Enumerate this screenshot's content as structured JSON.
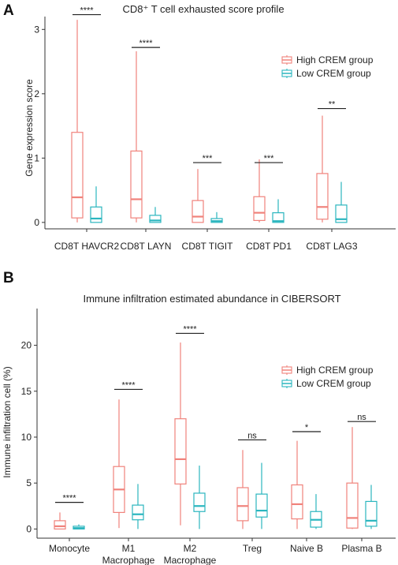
{
  "colors": {
    "high": "#F0827B",
    "low": "#2BB6BF",
    "axis": "#333333",
    "sig": "#222222"
  },
  "chart_data": [
    {
      "panel": "A",
      "type": "boxplot",
      "title": "CD8⁺ T cell exhausted score profile",
      "xlabel": "",
      "ylabel": "Gene expression score",
      "ylim": [
        -0.1,
        3.2
      ],
      "yticks": [
        0,
        1,
        2,
        3
      ],
      "legend": {
        "position": "top-right",
        "entries": [
          "High CREM group",
          "Low  CREM group"
        ]
      },
      "grid": false,
      "categories": [
        "CD8T HAVCR2",
        "CD8T LAYN",
        "CD8T TIGIT",
        "CD8T PD1",
        "CD8T LAG3"
      ],
      "series": [
        {
          "name": "High CREM group",
          "boxes": [
            {
              "min": 0.0,
              "q1": 0.07,
              "median": 0.39,
              "q3": 1.4,
              "max": 3.15
            },
            {
              "min": 0.0,
              "q1": 0.07,
              "median": 0.36,
              "q3": 1.11,
              "max": 2.66
            },
            {
              "min": 0.0,
              "q1": 0.0,
              "median": 0.09,
              "q3": 0.34,
              "max": 0.83
            },
            {
              "min": 0.0,
              "q1": 0.03,
              "median": 0.15,
              "q3": 0.4,
              "max": 0.98
            },
            {
              "min": 0.0,
              "q1": 0.05,
              "median": 0.24,
              "q3": 0.76,
              "max": 1.66
            }
          ]
        },
        {
          "name": "Low  CREM group",
          "boxes": [
            {
              "min": 0.0,
              "q1": 0.0,
              "median": 0.06,
              "q3": 0.24,
              "max": 0.56
            },
            {
              "min": 0.0,
              "q1": 0.0,
              "median": 0.03,
              "q3": 0.11,
              "max": 0.24
            },
            {
              "min": 0.0,
              "q1": 0.0,
              "median": 0.02,
              "q3": 0.06,
              "max": 0.16
            },
            {
              "min": 0.0,
              "q1": 0.0,
              "median": 0.02,
              "q3": 0.15,
              "max": 0.36
            },
            {
              "min": 0.0,
              "q1": 0.0,
              "median": 0.05,
              "q3": 0.27,
              "max": 0.63
            }
          ]
        }
      ],
      "significance": [
        {
          "label": "****",
          "y": 3.23
        },
        {
          "label": "****",
          "y": 2.72
        },
        {
          "label": "***",
          "y": 0.93
        },
        {
          "label": "***",
          "y": 0.93
        },
        {
          "label": "**",
          "y": 1.77
        }
      ]
    },
    {
      "panel": "B",
      "type": "boxplot",
      "title": "Immune infiltration estimated abundance in CIBERSORT",
      "xlabel": "",
      "ylabel": "Immune infiltration cell (%)",
      "ylim": [
        -1,
        24
      ],
      "yticks": [
        0,
        5,
        10,
        15,
        20
      ],
      "legend": {
        "position": "top-right",
        "entries": [
          "High CREM group",
          "Low  CREM group"
        ]
      },
      "grid": false,
      "categories": [
        [
          "Monocyte"
        ],
        [
          "M1",
          "Macrophage"
        ],
        [
          "M2",
          "Macrophage"
        ],
        [
          "Treg"
        ],
        [
          "Naive B"
        ],
        [
          "Plasma B"
        ]
      ],
      "series": [
        {
          "name": "High CREM group",
          "boxes": [
            {
              "min": 0.0,
              "q1": 0.0,
              "median": 0.3,
              "q3": 0.9,
              "max": 1.8
            },
            {
              "min": 0.1,
              "q1": 1.8,
              "median": 4.3,
              "q3": 6.8,
              "max": 14.1
            },
            {
              "min": 0.4,
              "q1": 4.9,
              "median": 7.6,
              "q3": 12.0,
              "max": 20.3
            },
            {
              "min": 0.0,
              "q1": 0.9,
              "median": 2.5,
              "q3": 4.5,
              "max": 8.6
            },
            {
              "min": 0.0,
              "q1": 1.1,
              "median": 2.7,
              "q3": 4.8,
              "max": 9.6
            },
            {
              "min": 0.0,
              "q1": 0.1,
              "median": 1.2,
              "q3": 5.0,
              "max": 11.1
            }
          ]
        },
        {
          "name": "Low  CREM group",
          "boxes": [
            {
              "min": 0.0,
              "q1": 0.0,
              "median": 0.1,
              "q3": 0.3,
              "max": 0.5
            },
            {
              "min": 0.0,
              "q1": 1.0,
              "median": 1.6,
              "q3": 2.6,
              "max": 4.9
            },
            {
              "min": 0.0,
              "q1": 1.9,
              "median": 2.5,
              "q3": 3.9,
              "max": 6.9
            },
            {
              "min": 0.0,
              "q1": 1.3,
              "median": 2.0,
              "q3": 3.8,
              "max": 7.2
            },
            {
              "min": 0.0,
              "q1": 0.2,
              "median": 1.0,
              "q3": 1.9,
              "max": 3.8
            },
            {
              "min": 0.0,
              "q1": 0.3,
              "median": 0.9,
              "q3": 3.0,
              "max": 4.8
            }
          ]
        }
      ],
      "significance": [
        {
          "label": "****",
          "y": 2.9
        },
        {
          "label": "****",
          "y": 15.2
        },
        {
          "label": "****",
          "y": 21.3
        },
        {
          "label": "ns",
          "y": 9.7
        },
        {
          "label": "*",
          "y": 10.6
        },
        {
          "label": "ns",
          "y": 11.7
        }
      ]
    }
  ]
}
